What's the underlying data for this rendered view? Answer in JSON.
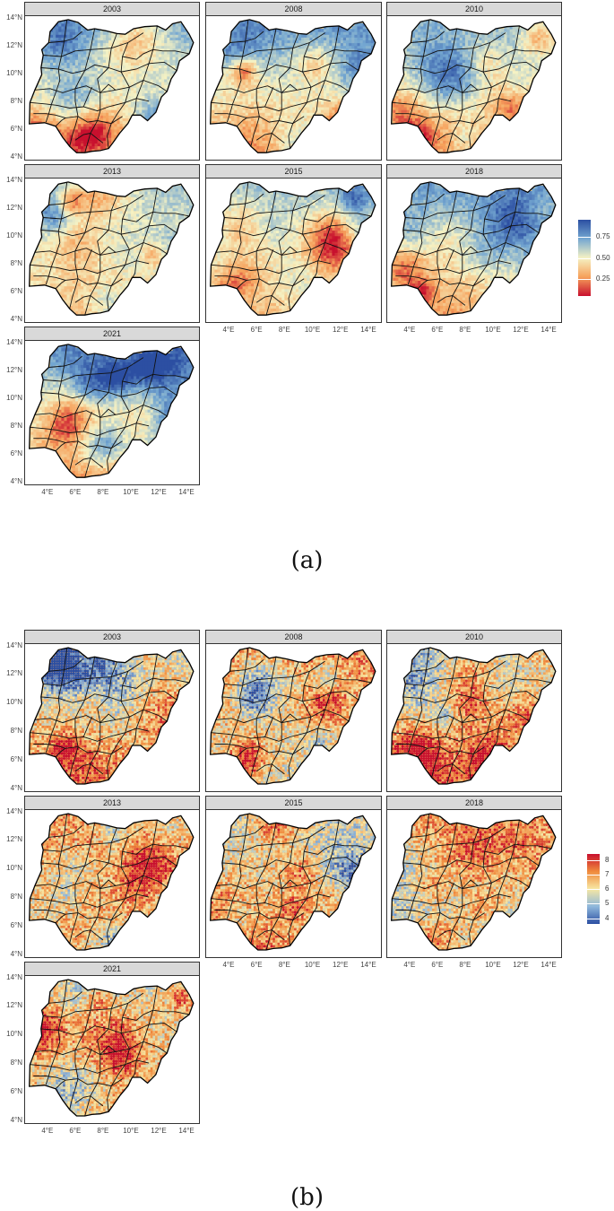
{
  "figures": [
    {
      "id": "a",
      "caption": "(a)",
      "panels": [
        "2003",
        "2008",
        "2010",
        "2013",
        "2015",
        "2018",
        "2021"
      ],
      "y_ticks": [
        "14°N",
        "12°N",
        "10°N",
        "8°N",
        "6°N",
        "4°N"
      ],
      "x_ticks": [
        "4°E",
        "6°E",
        "8°E",
        "10°E",
        "12°E",
        "14°E"
      ],
      "legend": {
        "labels": [
          "0.75",
          "0.50",
          "0.25"
        ],
        "colors": [
          "#2c4fa2",
          "#74a7d1",
          "#f5f2c4",
          "#f6a15b",
          "#c8102e"
        ],
        "range": [
          0.05,
          0.95
        ],
        "label_values": [
          0.75,
          0.5,
          0.25
        ]
      },
      "palette": "blue_high"
    },
    {
      "id": "b",
      "caption": "(b)",
      "panels": [
        "2003",
        "2008",
        "2010",
        "2013",
        "2015",
        "2018",
        "2021"
      ],
      "y_ticks": [
        "14°N",
        "12°N",
        "10°N",
        "8°N",
        "6°N",
        "4°N"
      ],
      "x_ticks": [
        "4°E",
        "6°E",
        "8°E",
        "10°E",
        "12°E",
        "14°E"
      ],
      "legend": {
        "labels": [
          "8",
          "7",
          "6",
          "5",
          "4"
        ],
        "colors": [
          "#c8102e",
          "#f08a3c",
          "#f7e7a3",
          "#8fb8dc",
          "#2c4fa2"
        ],
        "range": [
          3.6,
          8.4
        ],
        "label_values": [
          8,
          7,
          6,
          5,
          4
        ]
      },
      "palette": "red_high"
    }
  ]
}
